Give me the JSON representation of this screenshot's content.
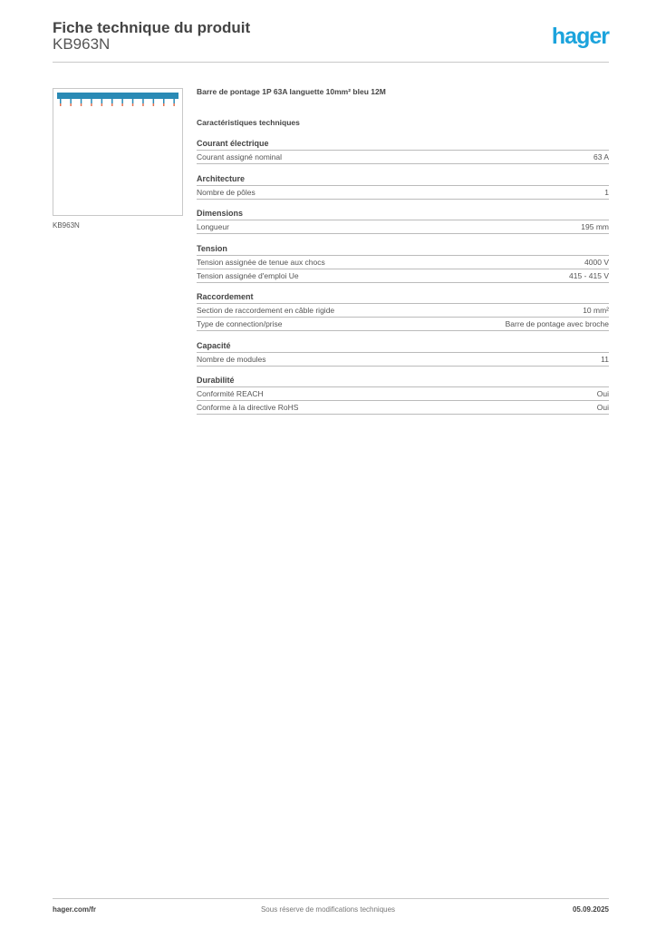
{
  "header": {
    "title": "Fiche technique du produit",
    "reference": "KB963N",
    "logo": "hager",
    "brand_color": "#1ba3dc"
  },
  "product": {
    "image_caption": "KB963N",
    "name": "Barre de pontage 1P 63A languette 10mm² bleu 12M"
  },
  "characteristics_title": "Caractéristiques techniques",
  "sections": [
    {
      "title": "Courant électrique",
      "rows": [
        {
          "label": "Courant assigné nominal",
          "value": "63 A"
        }
      ]
    },
    {
      "title": "Architecture",
      "rows": [
        {
          "label": "Nombre de pôles",
          "value": "1"
        }
      ]
    },
    {
      "title": "Dimensions",
      "rows": [
        {
          "label": "Longueur",
          "value": "195 mm"
        }
      ]
    },
    {
      "title": "Tension",
      "rows": [
        {
          "label": "Tension assignée de tenue aux chocs",
          "value": "4000 V"
        },
        {
          "label": "Tension assignée d'emploi Ue",
          "value": "415 - 415 V"
        }
      ]
    },
    {
      "title": "Raccordement",
      "rows": [
        {
          "label": "Section de raccordement en câble rigide",
          "value": "10 mm²"
        },
        {
          "label": "Type de connection/prise",
          "value": "Barre de pontage avec broche"
        }
      ]
    },
    {
      "title": "Capacité",
      "rows": [
        {
          "label": "Nombre de modules",
          "value": "11"
        }
      ]
    },
    {
      "title": "Durabilité",
      "rows": [
        {
          "label": "Conformité REACH",
          "value": "Oui"
        },
        {
          "label": "Conforme à la directive RoHS",
          "value": "Oui"
        }
      ]
    }
  ],
  "footer": {
    "website": "hager.com/fr",
    "notice": "Sous réserve de modifications techniques",
    "date": "05.09.2025"
  }
}
